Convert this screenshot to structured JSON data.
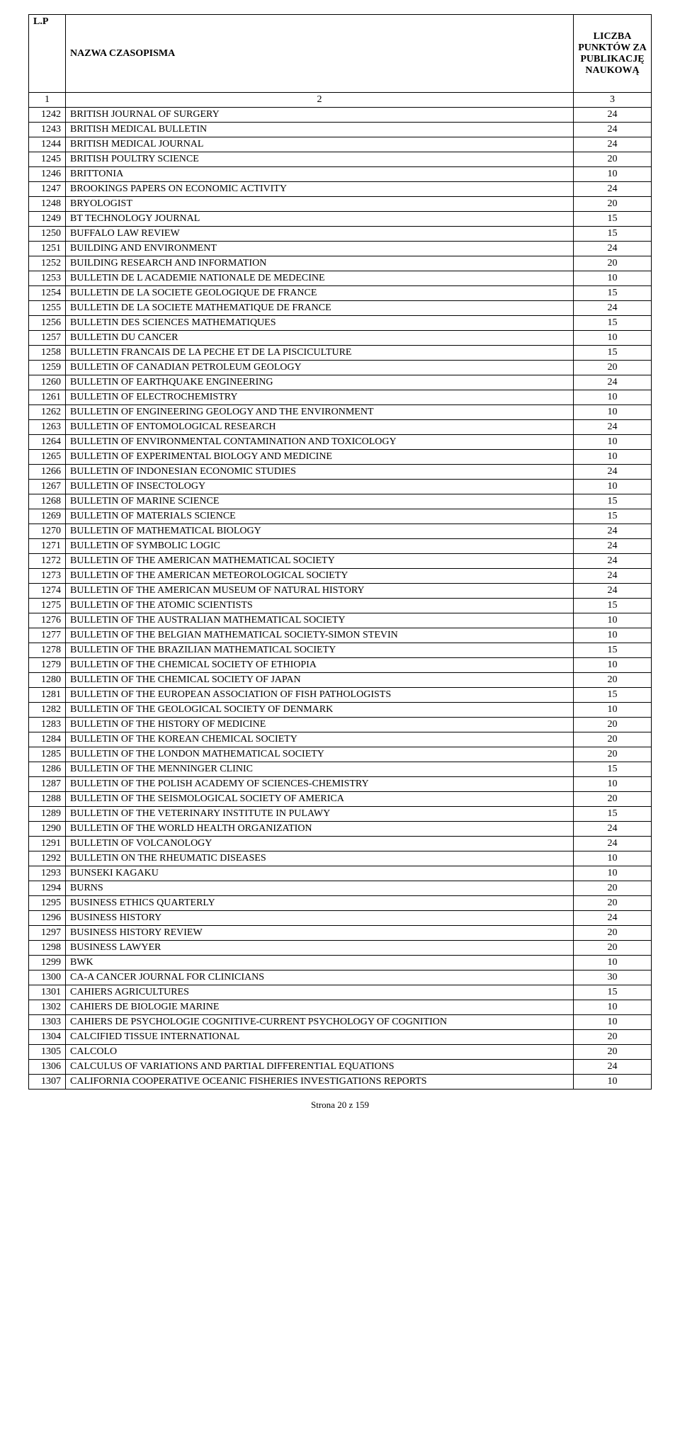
{
  "header": {
    "lp": "L.P",
    "title": "NAZWA CZASOPISMA",
    "points": "LICZBA PUNKTÓW ZA PUBLIKACJĘ NAUKOWĄ",
    "num1": "1",
    "num2": "2",
    "num3": "3"
  },
  "rows": [
    {
      "lp": "1242",
      "title": "BRITISH JOURNAL OF SURGERY",
      "pts": "24"
    },
    {
      "lp": "1243",
      "title": "BRITISH MEDICAL BULLETIN",
      "pts": "24"
    },
    {
      "lp": "1244",
      "title": "BRITISH MEDICAL JOURNAL",
      "pts": "24"
    },
    {
      "lp": "1245",
      "title": "BRITISH POULTRY SCIENCE",
      "pts": "20"
    },
    {
      "lp": "1246",
      "title": "BRITTONIA",
      "pts": "10"
    },
    {
      "lp": "1247",
      "title": "BROOKINGS PAPERS ON ECONOMIC ACTIVITY",
      "pts": "24"
    },
    {
      "lp": "1248",
      "title": "BRYOLOGIST",
      "pts": "20"
    },
    {
      "lp": "1249",
      "title": "BT TECHNOLOGY JOURNAL",
      "pts": "15"
    },
    {
      "lp": "1250",
      "title": "BUFFALO LAW REVIEW",
      "pts": "15"
    },
    {
      "lp": "1251",
      "title": "BUILDING AND ENVIRONMENT",
      "pts": "24"
    },
    {
      "lp": "1252",
      "title": "BUILDING RESEARCH AND INFORMATION",
      "pts": "20"
    },
    {
      "lp": "1253",
      "title": "BULLETIN DE L ACADEMIE NATIONALE DE MEDECINE",
      "pts": "10"
    },
    {
      "lp": "1254",
      "title": "BULLETIN DE LA SOCIETE GEOLOGIQUE DE FRANCE",
      "pts": "15"
    },
    {
      "lp": "1255",
      "title": "BULLETIN DE LA SOCIETE MATHEMATIQUE DE FRANCE",
      "pts": "24"
    },
    {
      "lp": "1256",
      "title": "BULLETIN DES SCIENCES MATHEMATIQUES",
      "pts": "15"
    },
    {
      "lp": "1257",
      "title": "BULLETIN DU CANCER",
      "pts": "10"
    },
    {
      "lp": "1258",
      "title": "BULLETIN FRANCAIS DE LA PECHE ET DE LA PISCICULTURE",
      "pts": "15"
    },
    {
      "lp": "1259",
      "title": "BULLETIN OF CANADIAN PETROLEUM GEOLOGY",
      "pts": "20"
    },
    {
      "lp": "1260",
      "title": "BULLETIN OF EARTHQUAKE ENGINEERING",
      "pts": "24"
    },
    {
      "lp": "1261",
      "title": "BULLETIN OF ELECTROCHEMISTRY",
      "pts": "10"
    },
    {
      "lp": "1262",
      "title": "BULLETIN OF ENGINEERING GEOLOGY AND THE ENVIRONMENT",
      "pts": "10"
    },
    {
      "lp": "1263",
      "title": "BULLETIN OF ENTOMOLOGICAL RESEARCH",
      "pts": "24"
    },
    {
      "lp": "1264",
      "title": "BULLETIN OF ENVIRONMENTAL CONTAMINATION AND TOXICOLOGY",
      "pts": "10"
    },
    {
      "lp": "1265",
      "title": "BULLETIN OF EXPERIMENTAL BIOLOGY AND MEDICINE",
      "pts": "10"
    },
    {
      "lp": "1266",
      "title": "BULLETIN OF INDONESIAN ECONOMIC STUDIES",
      "pts": "24"
    },
    {
      "lp": "1267",
      "title": "BULLETIN OF INSECTOLOGY",
      "pts": "10"
    },
    {
      "lp": "1268",
      "title": "BULLETIN OF MARINE SCIENCE",
      "pts": "15"
    },
    {
      "lp": "1269",
      "title": "BULLETIN OF MATERIALS SCIENCE",
      "pts": "15"
    },
    {
      "lp": "1270",
      "title": "BULLETIN OF MATHEMATICAL BIOLOGY",
      "pts": "24"
    },
    {
      "lp": "1271",
      "title": "BULLETIN OF SYMBOLIC LOGIC",
      "pts": "24"
    },
    {
      "lp": "1272",
      "title": "BULLETIN OF THE AMERICAN MATHEMATICAL SOCIETY",
      "pts": "24"
    },
    {
      "lp": "1273",
      "title": "BULLETIN OF THE AMERICAN METEOROLOGICAL SOCIETY",
      "pts": "24"
    },
    {
      "lp": "1274",
      "title": "BULLETIN OF THE AMERICAN MUSEUM OF NATURAL HISTORY",
      "pts": "24"
    },
    {
      "lp": "1275",
      "title": "BULLETIN OF THE ATOMIC SCIENTISTS",
      "pts": "15"
    },
    {
      "lp": "1276",
      "title": "BULLETIN OF THE AUSTRALIAN MATHEMATICAL SOCIETY",
      "pts": "10"
    },
    {
      "lp": "1277",
      "title": "BULLETIN OF THE BELGIAN MATHEMATICAL SOCIETY-SIMON STEVIN",
      "pts": "10"
    },
    {
      "lp": "1278",
      "title": "BULLETIN OF THE BRAZILIAN MATHEMATICAL SOCIETY",
      "pts": "15"
    },
    {
      "lp": "1279",
      "title": "BULLETIN OF THE CHEMICAL SOCIETY OF ETHIOPIA",
      "pts": "10"
    },
    {
      "lp": "1280",
      "title": "BULLETIN OF THE CHEMICAL SOCIETY OF JAPAN",
      "pts": "20"
    },
    {
      "lp": "1281",
      "title": "BULLETIN OF THE EUROPEAN ASSOCIATION OF FISH PATHOLOGISTS",
      "pts": "15"
    },
    {
      "lp": "1282",
      "title": "BULLETIN OF THE GEOLOGICAL SOCIETY OF DENMARK",
      "pts": "10"
    },
    {
      "lp": "1283",
      "title": "BULLETIN OF THE HISTORY OF MEDICINE",
      "pts": "20"
    },
    {
      "lp": "1284",
      "title": "BULLETIN OF THE KOREAN CHEMICAL SOCIETY",
      "pts": "20"
    },
    {
      "lp": "1285",
      "title": "BULLETIN OF THE LONDON MATHEMATICAL SOCIETY",
      "pts": "20"
    },
    {
      "lp": "1286",
      "title": "BULLETIN OF THE MENNINGER CLINIC",
      "pts": "15"
    },
    {
      "lp": "1287",
      "title": "BULLETIN OF THE POLISH ACADEMY OF SCIENCES-CHEMISTRY",
      "pts": "10"
    },
    {
      "lp": "1288",
      "title": "BULLETIN OF THE SEISMOLOGICAL SOCIETY OF AMERICA",
      "pts": "20"
    },
    {
      "lp": "1289",
      "title": "BULLETIN OF THE VETERINARY INSTITUTE IN PULAWY",
      "pts": "15"
    },
    {
      "lp": "1290",
      "title": "BULLETIN OF THE WORLD HEALTH ORGANIZATION",
      "pts": "24"
    },
    {
      "lp": "1291",
      "title": "BULLETIN OF VOLCANOLOGY",
      "pts": "24"
    },
    {
      "lp": "1292",
      "title": "BULLETIN ON THE RHEUMATIC DISEASES",
      "pts": "10"
    },
    {
      "lp": "1293",
      "title": "BUNSEKI KAGAKU",
      "pts": "10"
    },
    {
      "lp": "1294",
      "title": "BURNS",
      "pts": "20"
    },
    {
      "lp": "1295",
      "title": "BUSINESS ETHICS QUARTERLY",
      "pts": "20"
    },
    {
      "lp": "1296",
      "title": "BUSINESS HISTORY",
      "pts": "24"
    },
    {
      "lp": "1297",
      "title": "BUSINESS HISTORY REVIEW",
      "pts": "20"
    },
    {
      "lp": "1298",
      "title": "BUSINESS LAWYER",
      "pts": "20"
    },
    {
      "lp": "1299",
      "title": "BWK",
      "pts": "10"
    },
    {
      "lp": "1300",
      "title": "CA-A CANCER JOURNAL FOR CLINICIANS",
      "pts": "30"
    },
    {
      "lp": "1301",
      "title": "CAHIERS AGRICULTURES",
      "pts": "15"
    },
    {
      "lp": "1302",
      "title": "CAHIERS DE BIOLOGIE MARINE",
      "pts": "10"
    },
    {
      "lp": "1303",
      "title": "CAHIERS DE PSYCHOLOGIE COGNITIVE-CURRENT PSYCHOLOGY OF COGNITION",
      "pts": "10"
    },
    {
      "lp": "1304",
      "title": "CALCIFIED TISSUE INTERNATIONAL",
      "pts": "20"
    },
    {
      "lp": "1305",
      "title": "CALCOLO",
      "pts": "20"
    },
    {
      "lp": "1306",
      "title": "CALCULUS OF VARIATIONS AND PARTIAL DIFFERENTIAL EQUATIONS",
      "pts": "24"
    },
    {
      "lp": "1307",
      "title": "CALIFORNIA COOPERATIVE OCEANIC FISHERIES INVESTIGATIONS REPORTS",
      "pts": "10"
    }
  ],
  "footer": "Strona 20 z 159"
}
